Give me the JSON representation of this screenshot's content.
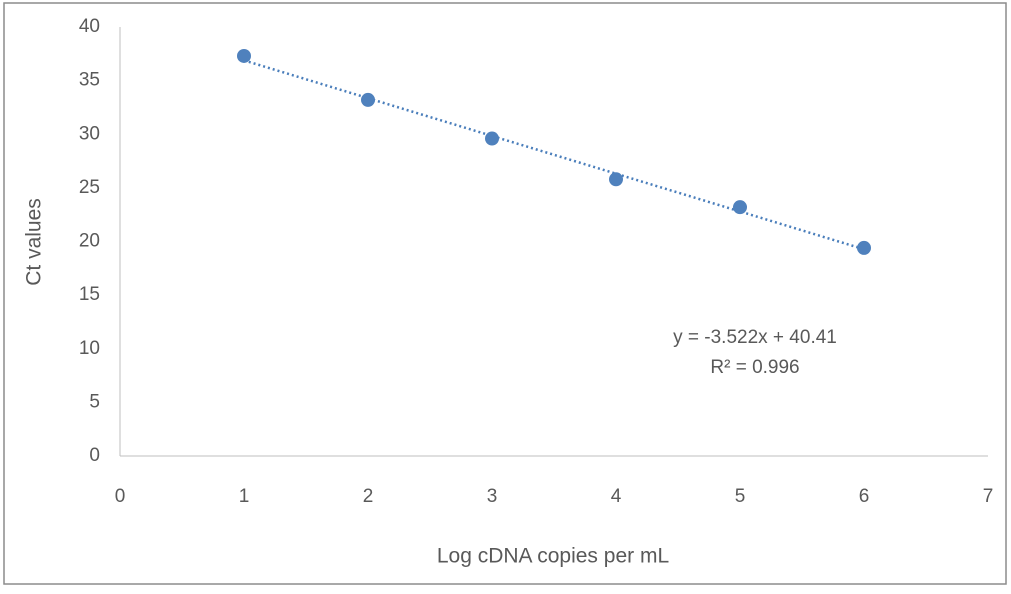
{
  "chart_data": {
    "type": "scatter",
    "x_label": "Log cDNA copies per mL",
    "y_label": "Ct values",
    "x": [
      1,
      2,
      3,
      4,
      5,
      6
    ],
    "series": [
      {
        "color": "#4f81bd",
        "values": [
          37.3,
          33.2,
          29.6,
          25.8,
          23.2,
          19.4
        ]
      }
    ],
    "xlim": [
      0,
      7
    ],
    "xticks": [
      0,
      1,
      2,
      3,
      4,
      5,
      6,
      7
    ],
    "ylim": [
      0,
      40
    ],
    "yticks": [
      0,
      5,
      10,
      15,
      20,
      25,
      30,
      35,
      40
    ],
    "grid": false,
    "trendline": {
      "slope": -3.522,
      "intercept": 40.41,
      "color": "#4a7ebb",
      "label": "y = -3.522x + 40.41",
      "r2_label": "R² = 0.996"
    }
  }
}
